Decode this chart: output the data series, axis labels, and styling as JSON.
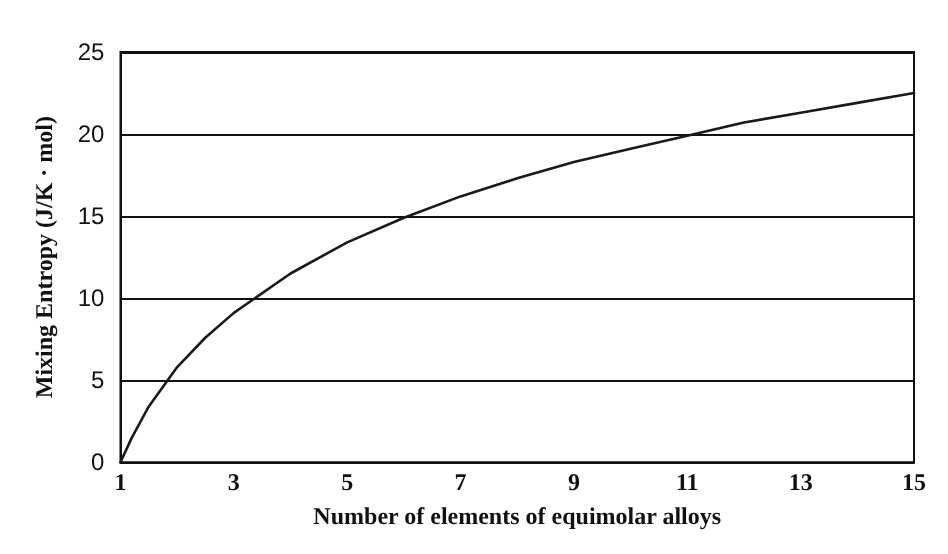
{
  "chart_data": {
    "type": "line",
    "xlabel": "Number of elements of equimolar alloys",
    "ylabel": "Mixing Entropy (J/K · mol)",
    "x": [
      1,
      1.2,
      1.5,
      2,
      2.5,
      3,
      4,
      5,
      6,
      7,
      8,
      9,
      10,
      11,
      12,
      13,
      14,
      15
    ],
    "series": [
      {
        "color": "#1a1a1a",
        "values": [
          0,
          1.5,
          3.4,
          5.8,
          7.6,
          9.1,
          11.5,
          13.4,
          14.9,
          16.2,
          17.3,
          18.3,
          19.1,
          19.9,
          20.7,
          21.3,
          21.9,
          22.5
        ]
      }
    ],
    "xlim": [
      1,
      15
    ],
    "xticks": [
      1,
      3,
      5,
      7,
      9,
      11,
      13,
      15
    ],
    "ylim": [
      0,
      25
    ],
    "yticks": [
      0,
      5,
      10,
      15,
      20,
      25
    ],
    "grid": "y",
    "marker": "none",
    "line_style": "solid"
  }
}
